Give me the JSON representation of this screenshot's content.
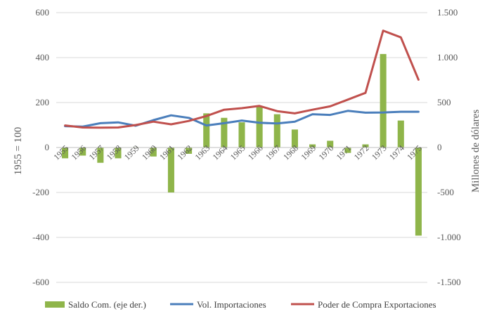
{
  "chart_data": {
    "type": "bar+line",
    "categories": [
      "1955",
      "1956",
      "1957",
      "1958",
      "1959",
      "1960",
      "1961",
      "1962",
      "1963",
      "1964",
      "1965",
      "1966",
      "1967",
      "1968",
      "1969",
      "1970",
      "1971",
      "1972",
      "1973",
      "1974",
      "1975"
    ],
    "series": [
      {
        "name": "Saldo Com. (eje der.)",
        "type": "bar",
        "axis": "right",
        "color": "#8fb54a",
        "values": [
          -120,
          -90,
          -170,
          -120,
          5,
          -100,
          -500,
          -70,
          380,
          330,
          280,
          460,
          370,
          200,
          35,
          75,
          -60,
          35,
          1040,
          300,
          -980
        ]
      },
      {
        "name": "Vol. Importaciones",
        "type": "line",
        "axis": "left",
        "color": "#4a7ebb",
        "values": [
          95,
          93,
          108,
          112,
          97,
          122,
          143,
          132,
          98,
          108,
          120,
          110,
          107,
          115,
          148,
          145,
          163,
          155,
          156,
          159,
          159
        ]
      },
      {
        "name": "Poder de Compra Exportaciones",
        "type": "line",
        "axis": "left",
        "color": "#c0504d",
        "values": [
          98,
          89,
          88,
          89,
          100,
          115,
          103,
          118,
          140,
          168,
          175,
          185,
          162,
          152,
          168,
          183,
          213,
          243,
          520,
          490,
          302
        ]
      }
    ],
    "left_axis": {
      "label": "1955 = 100",
      "ylim": [
        -600,
        600
      ],
      "ticks": [
        600,
        400,
        200,
        0,
        -200,
        -400,
        -600
      ],
      "tick_labels": [
        "600",
        "400",
        "200",
        "0",
        "-200",
        "-400",
        "-600"
      ]
    },
    "right_axis": {
      "label": "Millones de dólares",
      "ylim": [
        -1500,
        1500
      ],
      "ticks": [
        1500,
        1000,
        500,
        0,
        -500,
        -1000,
        -1500
      ],
      "tick_labels": [
        "1.500",
        "1.000",
        "500",
        "0",
        "-500",
        "-1.000",
        "-1.500"
      ]
    },
    "grid": true,
    "legend": "bottom"
  }
}
